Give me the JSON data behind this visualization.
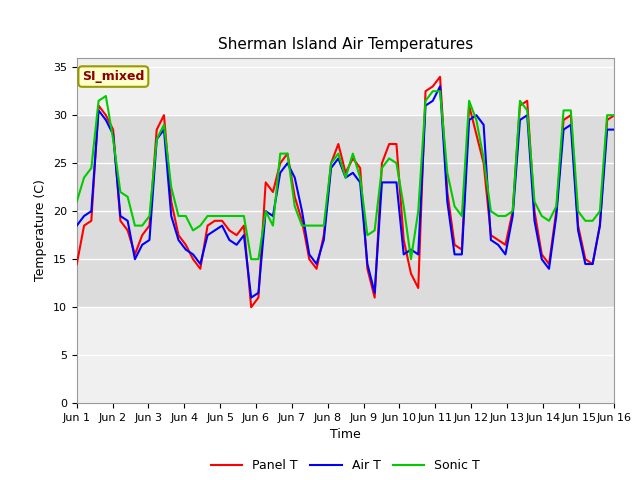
{
  "title": "Sherman Island Air Temperatures",
  "xlabel": "Time",
  "ylabel": "Temperature (C)",
  "xlim": [
    0,
    15
  ],
  "ylim": [
    0,
    36
  ],
  "yticks": [
    0,
    5,
    10,
    15,
    20,
    25,
    30,
    35
  ],
  "xtick_labels": [
    "Jun 1",
    "Jun 2",
    "Jun 3",
    "Jun 4",
    "Jun 5",
    "Jun 6",
    "Jun 7",
    "Jun 8",
    "Jun 9",
    "Jun 10",
    "Jun 11",
    "Jun 12",
    "Jun 13",
    "Jun 14",
    "Jun 15",
    "Jun 16"
  ],
  "annotation_text": "SI_mixed",
  "annotation_color": "#8B0000",
  "annotation_bg": "#FFFFCC",
  "bg_band_y1": 10,
  "bg_band_y2": 30,
  "bg_band_color": "#DCDCDC",
  "plot_bg_color": "#F0F0F0",
  "outer_bg_color": "#FFFFFF",
  "line_colors": [
    "#FF0000",
    "#0000FF",
    "#00CC00"
  ],
  "line_labels": [
    "Panel T",
    "Air T",
    "Sonic T"
  ],
  "line_width": 1.5,
  "panel_t": [
    14.5,
    18.5,
    19.0,
    31.0,
    30.0,
    28.5,
    19.0,
    18.0,
    15.5,
    17.5,
    18.5,
    28.5,
    30.0,
    21.0,
    17.5,
    16.5,
    15.0,
    14.0,
    18.5,
    19.0,
    19.0,
    18.0,
    17.5,
    18.5,
    10.0,
    11.0,
    23.0,
    22.0,
    25.0,
    26.0,
    21.5,
    19.0,
    15.0,
    14.0,
    17.5,
    25.0,
    27.0,
    24.0,
    25.5,
    24.5,
    14.0,
    11.0,
    25.0,
    27.0,
    27.0,
    17.0,
    13.5,
    12.0,
    32.5,
    33.0,
    34.0,
    22.0,
    16.5,
    16.0,
    31.0,
    28.0,
    25.0,
    17.5,
    17.0,
    16.5,
    20.0,
    31.0,
    31.5,
    20.0,
    15.5,
    14.5,
    20.0,
    29.5,
    30.0,
    18.5,
    15.0,
    14.5,
    18.5,
    29.5,
    30.0
  ],
  "air_t": [
    18.5,
    19.5,
    20.0,
    30.5,
    29.5,
    28.0,
    19.5,
    19.0,
    15.0,
    16.5,
    17.0,
    27.5,
    28.5,
    19.5,
    17.0,
    16.0,
    15.5,
    14.5,
    17.5,
    18.0,
    18.5,
    17.0,
    16.5,
    17.5,
    11.0,
    11.5,
    20.0,
    19.5,
    24.0,
    25.0,
    23.5,
    20.0,
    15.5,
    14.5,
    17.0,
    24.5,
    25.5,
    23.5,
    24.0,
    23.0,
    14.5,
    11.5,
    23.0,
    23.0,
    23.0,
    15.5,
    16.0,
    15.5,
    31.0,
    31.5,
    33.0,
    21.0,
    15.5,
    15.5,
    29.5,
    30.0,
    29.0,
    17.0,
    16.5,
    15.5,
    19.5,
    29.5,
    30.0,
    19.0,
    15.0,
    14.0,
    19.5,
    28.5,
    29.0,
    18.0,
    14.5,
    14.5,
    18.5,
    28.5,
    28.5
  ],
  "sonic_t": [
    21.0,
    23.5,
    24.5,
    31.5,
    32.0,
    27.5,
    22.0,
    21.5,
    18.5,
    18.5,
    19.5,
    27.5,
    29.0,
    22.5,
    19.5,
    19.5,
    18.0,
    18.5,
    19.5,
    19.5,
    19.5,
    19.5,
    19.5,
    19.5,
    15.0,
    15.0,
    20.0,
    18.5,
    26.0,
    26.0,
    20.5,
    18.5,
    18.5,
    18.5,
    18.5,
    25.0,
    26.0,
    23.5,
    26.0,
    23.5,
    17.5,
    18.0,
    24.5,
    25.5,
    25.0,
    20.5,
    15.0,
    20.0,
    31.5,
    32.5,
    32.5,
    24.0,
    20.5,
    19.5,
    31.5,
    29.5,
    25.5,
    20.0,
    19.5,
    19.5,
    20.0,
    31.5,
    30.5,
    21.0,
    19.5,
    19.0,
    20.5,
    30.5,
    30.5,
    20.0,
    19.0,
    19.0,
    20.0,
    30.0,
    30.0
  ],
  "title_fontsize": 11,
  "axis_label_fontsize": 9,
  "tick_fontsize": 8,
  "legend_fontsize": 9
}
